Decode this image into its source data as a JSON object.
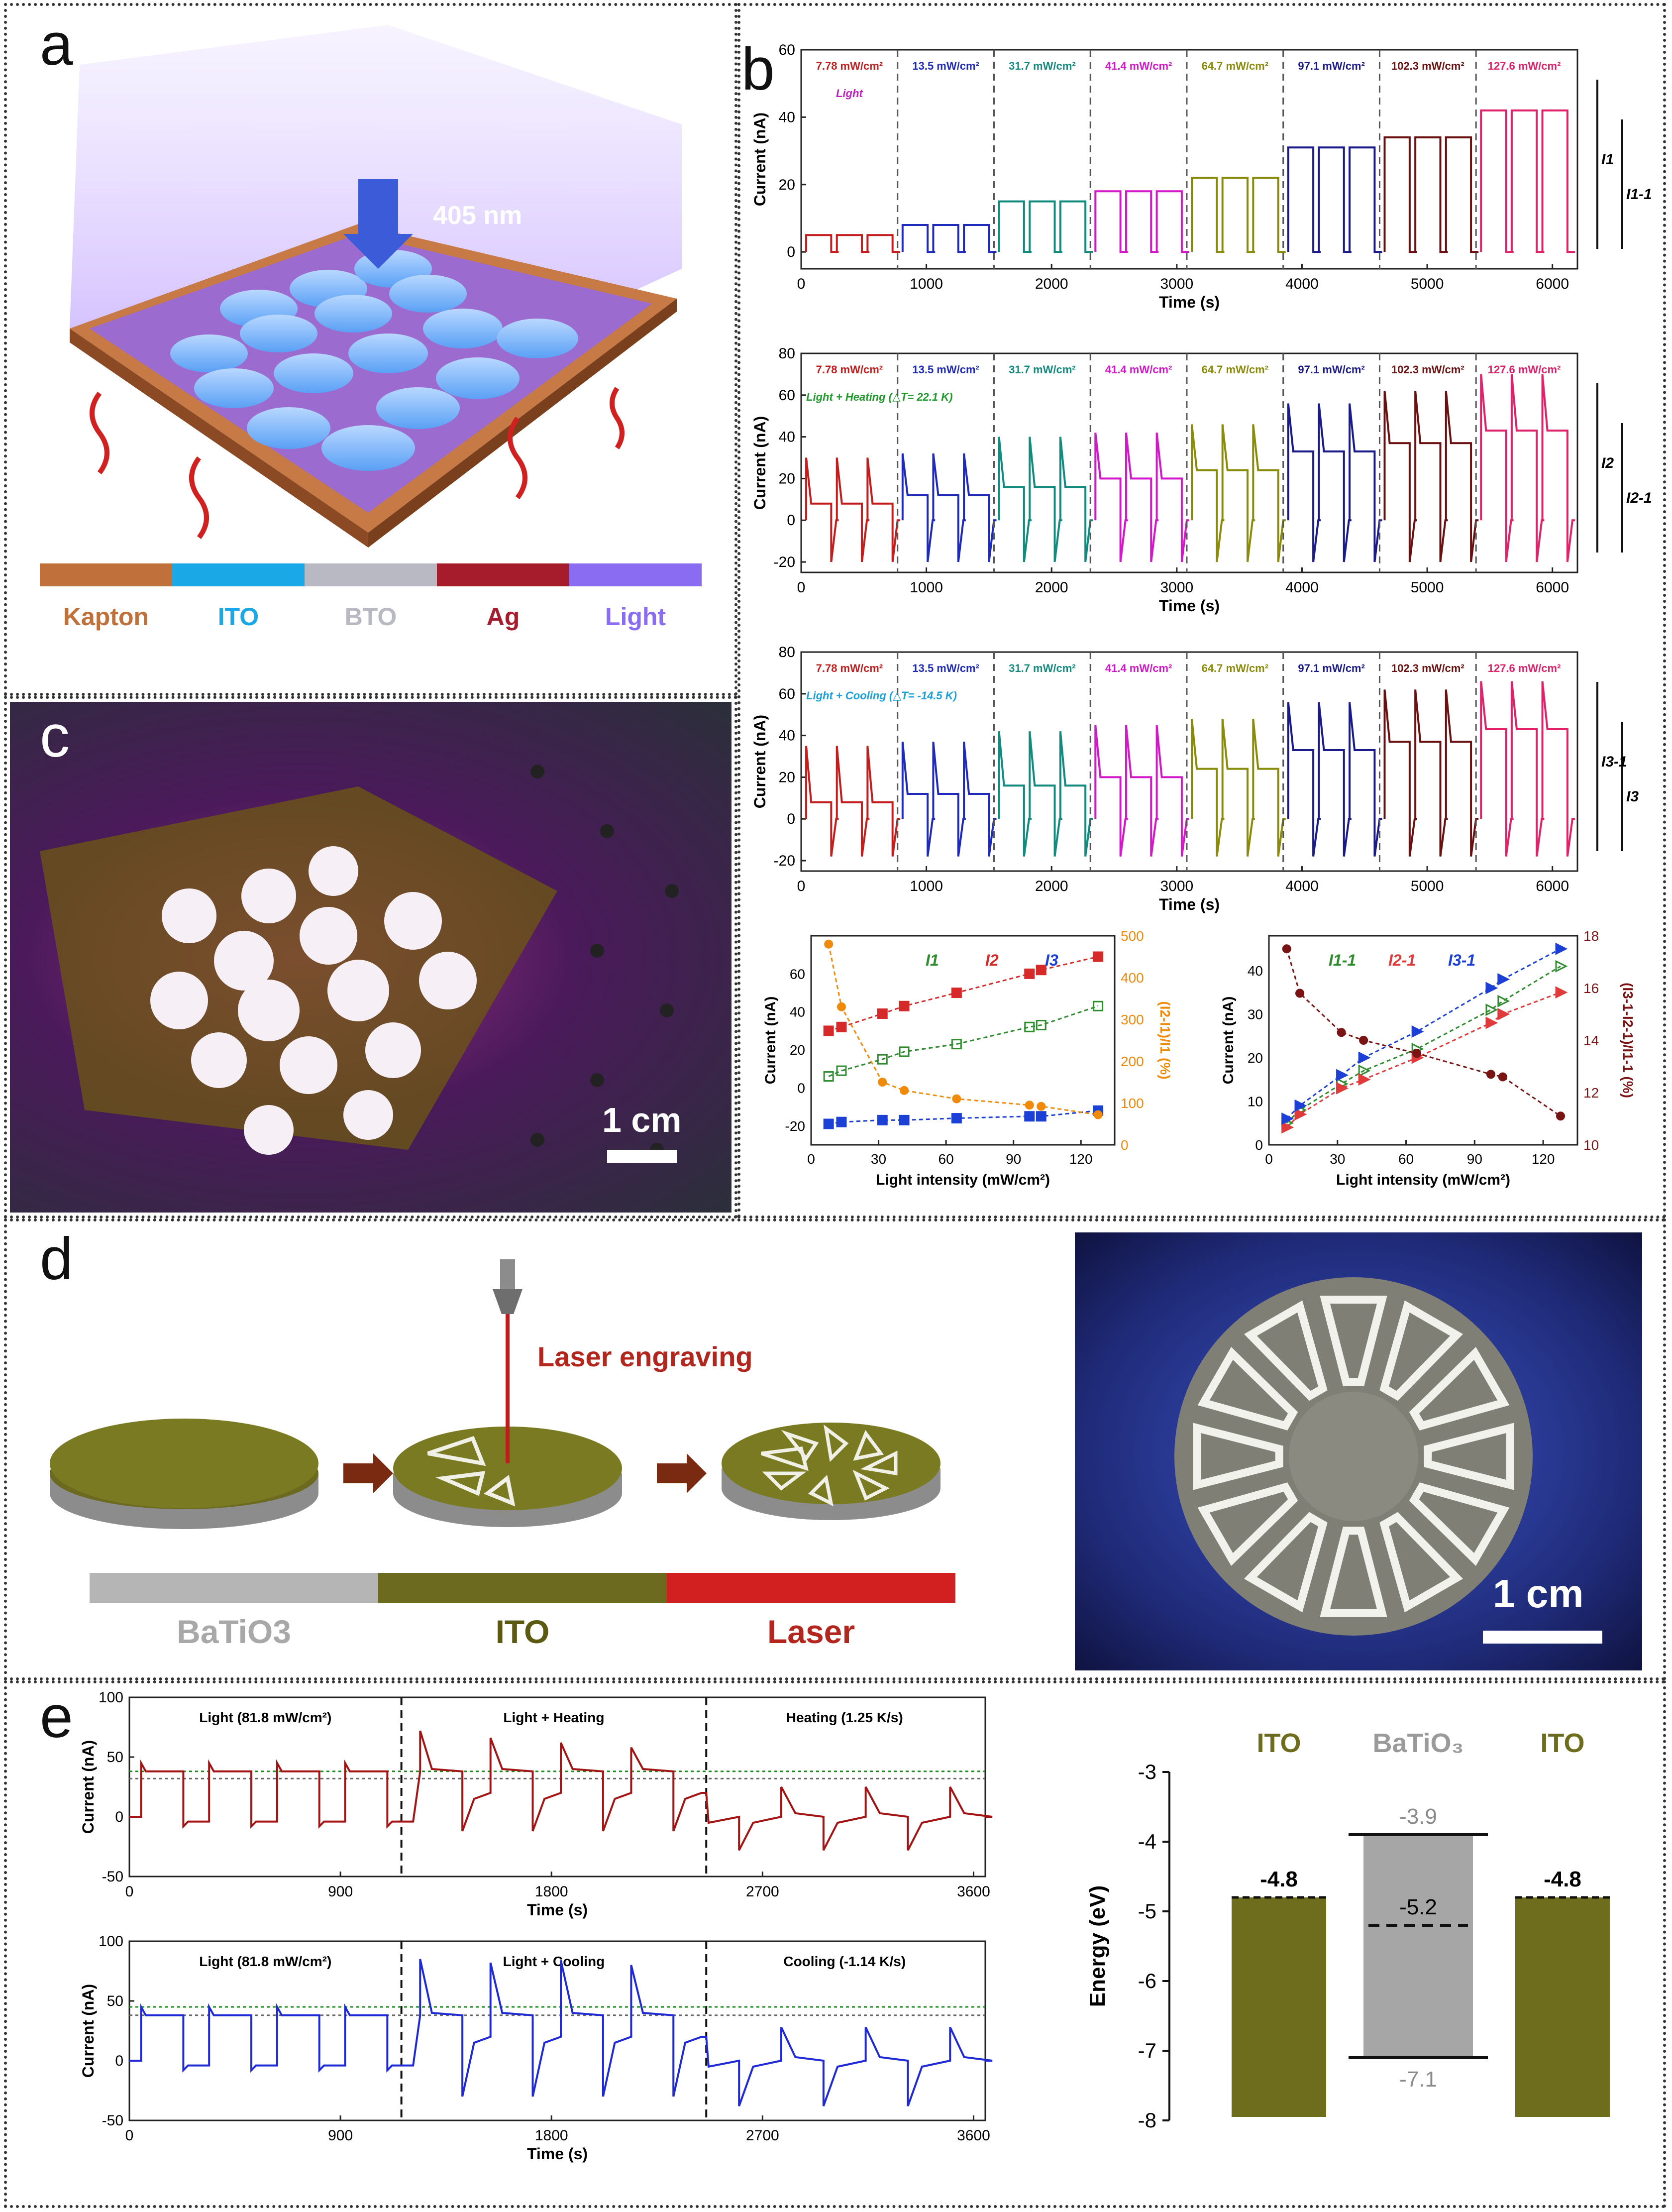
{
  "panels": {
    "a": "a",
    "b": "b",
    "c": "c",
    "d": "d",
    "e": "e"
  },
  "panel_a": {
    "wavelength": "405 nm",
    "legend": [
      {
        "label": "Kapton",
        "color": "#c0703a"
      },
      {
        "label": "ITO",
        "color": "#1aa8e6"
      },
      {
        "label": "BTO",
        "color": "#b9b9c3"
      },
      {
        "label": "Ag",
        "color": "#a61c2c"
      },
      {
        "label": "Light",
        "color": "#8a6cf2"
      }
    ]
  },
  "panel_c": {
    "scale": "1 cm"
  },
  "panel_d": {
    "process": "Laser engraving",
    "legend": [
      {
        "label": "BaTiO3",
        "color": "#b5b5b5",
        "text_color": "#a8a8a8"
      },
      {
        "label": "ITO",
        "color": "#6b6a1e",
        "text_color": "#5c5a12"
      },
      {
        "label": "Laser",
        "color": "#d21f1f",
        "text_color": "#b3261e"
      }
    ],
    "scale": "1 cm"
  },
  "chart_data": [
    {
      "id": "b1",
      "type": "line",
      "title": "Light",
      "xlabel": "Time (s)",
      "ylabel": "Current (nA)",
      "xlim": [
        0,
        6200
      ],
      "ylim": [
        -5,
        60
      ],
      "xticks": [
        0,
        1000,
        2000,
        3000,
        4000,
        5000,
        6000
      ],
      "yticks": [
        0,
        20,
        40,
        60
      ],
      "intensities": [
        "7.78 mW/cm²",
        "13.5 mW/cm²",
        "31.7 mW/cm²",
        "41.4 mW/cm²",
        "64.7 mW/cm²",
        "97.1 mW/cm²",
        "102.3 mW/cm²",
        "127.6 mW/cm²"
      ],
      "plateaus": [
        5,
        8,
        15,
        18,
        22,
        31,
        34,
        42
      ],
      "side_labels": [
        "I1",
        "I1-1"
      ]
    },
    {
      "id": "b2",
      "type": "line",
      "title": "Light + Heating (△T= 22.1 K)",
      "xlabel": "Time (s)",
      "ylabel": "Current (nA)",
      "xlim": [
        0,
        6200
      ],
      "ylim": [
        -25,
        80
      ],
      "xticks": [
        0,
        1000,
        2000,
        3000,
        4000,
        5000,
        6000
      ],
      "yticks": [
        -20,
        0,
        20,
        40,
        60,
        80
      ],
      "intensities": [
        "7.78 mW/cm²",
        "13.5 mW/cm²",
        "31.7 mW/cm²",
        "41.4 mW/cm²",
        "64.7 mW/cm²",
        "97.1 mW/cm²",
        "102.3 mW/cm²",
        "127.6 mW/cm²"
      ],
      "plateaus": [
        8,
        12,
        16,
        20,
        24,
        33,
        37,
        43
      ],
      "peaks": [
        30,
        32,
        40,
        42,
        46,
        56,
        62,
        70
      ],
      "side_labels": [
        "I2",
        "I2-1"
      ]
    },
    {
      "id": "b3",
      "type": "line",
      "title": "Light + Cooling (△T= -14.5 K)",
      "xlabel": "Time (s)",
      "ylabel": "Current (nA)",
      "xlim": [
        0,
        6200
      ],
      "ylim": [
        -25,
        80
      ],
      "xticks": [
        0,
        1000,
        2000,
        3000,
        4000,
        5000,
        6000
      ],
      "yticks": [
        -20,
        0,
        20,
        40,
        60,
        80
      ],
      "intensities": [
        "7.78 mW/cm²",
        "13.5 mW/cm²",
        "31.7 mW/cm²",
        "41.4 mW/cm²",
        "64.7 mW/cm²",
        "97.1 mW/cm²",
        "102.3 mW/cm²",
        "127.6 mW/cm²"
      ],
      "plateaus": [
        8,
        12,
        16,
        20,
        24,
        33,
        37,
        43
      ],
      "peaks": [
        35,
        37,
        42,
        45,
        48,
        56,
        62,
        66
      ],
      "side_labels": [
        "I3-1",
        "I3"
      ]
    },
    {
      "id": "b4",
      "type": "scatter",
      "xlabel": "Light intensity (mW/cm²)",
      "ylabel": "Current (nA)",
      "y2label": "(I2-I1)/I1 (%)",
      "xlim": [
        0,
        135
      ],
      "ylim": [
        -30,
        80
      ],
      "y2lim": [
        0,
        500
      ],
      "xticks": [
        0,
        30,
        60,
        90,
        120
      ],
      "yticks": [
        -20,
        0,
        20,
        40,
        60
      ],
      "y2ticks": [
        0,
        100,
        200,
        300,
        400,
        500
      ],
      "x": [
        7.78,
        13.5,
        31.7,
        41.4,
        64.7,
        97.1,
        102.3,
        127.6
      ],
      "series": [
        {
          "name": "I1",
          "color": "#2e8b2e",
          "values": [
            6,
            9,
            15,
            19,
            23,
            32,
            33,
            43
          ]
        },
        {
          "name": "I2",
          "color": "#d62a2a",
          "values": [
            30,
            32,
            39,
            43,
            50,
            60,
            62,
            69
          ]
        },
        {
          "name": "I3",
          "color": "#1c3fd6",
          "values": [
            -19,
            -18,
            -17,
            -17,
            -16,
            -15,
            -15,
            -12
          ]
        },
        {
          "name": "ratio",
          "axis": "y2",
          "color": "#f08a0b",
          "values": [
            480,
            330,
            150,
            130,
            110,
            95,
            92,
            72
          ]
        }
      ]
    },
    {
      "id": "b5",
      "type": "scatter",
      "xlabel": "Light intensity (mW/cm²)",
      "ylabel": "Current (nA)",
      "y2label": "(I3-1-I2-1)/I1-1 (%)",
      "xlim": [
        0,
        135
      ],
      "ylim": [
        0,
        48
      ],
      "y2lim": [
        10,
        18
      ],
      "xticks": [
        0,
        30,
        60,
        90,
        120
      ],
      "yticks": [
        0,
        10,
        20,
        30,
        40
      ],
      "y2ticks": [
        10,
        12,
        14,
        16,
        18
      ],
      "x": [
        7.78,
        13.5,
        31.7,
        41.4,
        64.7,
        97.1,
        102.3,
        127.6
      ],
      "series": [
        {
          "name": "I1-1",
          "color": "#2e8b2e",
          "values": [
            5,
            8,
            14,
            17,
            22,
            31,
            33,
            41
          ]
        },
        {
          "name": "I2-1",
          "color": "#e03a3a",
          "values": [
            4,
            7,
            13,
            15,
            20,
            28,
            30,
            35
          ]
        },
        {
          "name": "I3-1",
          "color": "#1c3fd6",
          "values": [
            6,
            9,
            16,
            20,
            26,
            36,
            38,
            45
          ]
        },
        {
          "name": "ratio",
          "axis": "y2",
          "color": "#7a1414",
          "values": [
            17.5,
            15.8,
            14.3,
            14.0,
            13.5,
            12.7,
            12.6,
            11.1
          ]
        }
      ]
    },
    {
      "id": "e1",
      "type": "line",
      "xlabel": "Time (s)",
      "ylabel": "Current (nA)",
      "xlim": [
        0,
        3650
      ],
      "ylim": [
        -50,
        100
      ],
      "xticks": [
        0,
        900,
        1800,
        2700,
        3600
      ],
      "yticks": [
        -50,
        0,
        50,
        100
      ],
      "sections": [
        "Light  (81.8 mW/cm²)",
        "Light + Heating",
        "Heating (1.25 K/s)"
      ],
      "color": "#a31515"
    },
    {
      "id": "e2",
      "type": "line",
      "xlabel": "Time (s)",
      "ylabel": "Current (nA)",
      "xlim": [
        0,
        3650
      ],
      "ylim": [
        -50,
        100
      ],
      "xticks": [
        0,
        900,
        1800,
        2700,
        3600
      ],
      "yticks": [
        -50,
        0,
        50,
        100
      ],
      "sections": [
        "Light  (81.8 mW/cm²)",
        "Light + Cooling",
        "Cooling (-1.14 K/s)"
      ],
      "color": "#1f2ad6"
    },
    {
      "id": "e3",
      "type": "bar",
      "ylabel": "Energy (eV)",
      "ylim": [
        -8,
        -3
      ],
      "yticks": [
        -3,
        -4,
        -5,
        -6,
        -7,
        -8
      ],
      "categories": [
        "ITO",
        "BaTiO3",
        "ITO"
      ],
      "bars": [
        {
          "label": "ITO",
          "top": -4.8,
          "label_text": "-4.8",
          "color": "#6e6d1d"
        },
        {
          "label": "BaTiO3",
          "top": -3.9,
          "bottom": -7.1,
          "mid": -5.2,
          "top_text": "-3.9",
          "bottom_text": "-7.1",
          "mid_text": "-5.2",
          "color": "#a6a6a6"
        },
        {
          "label": "ITO",
          "top": -4.8,
          "label_text": "-4.8",
          "color": "#6e6d1d"
        }
      ]
    }
  ]
}
